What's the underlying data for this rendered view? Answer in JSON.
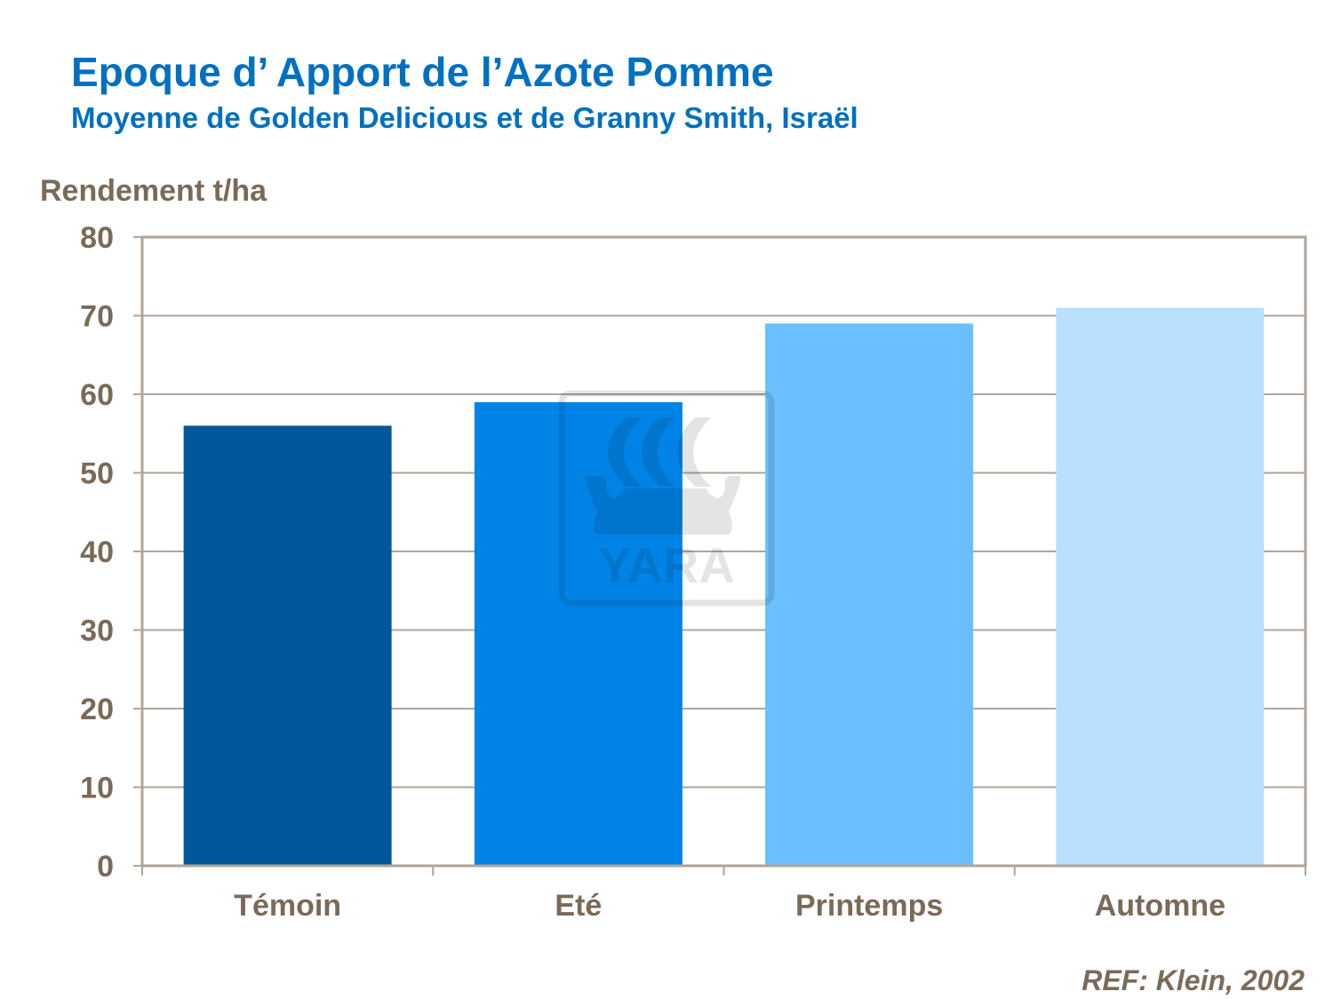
{
  "chart_data": {
    "type": "bar",
    "title": "Epoque d’ Apport de l’Azote Pomme",
    "subtitle": "Moyenne de Golden Delicious et de Granny Smith, Israël",
    "ylabel": "Rendement t/ha",
    "xlabel": "",
    "categories": [
      "Témoin",
      "Eté",
      "Printemps",
      "Automne"
    ],
    "values": [
      56,
      59,
      69,
      71
    ],
    "colors": [
      "#00589A",
      "#0083E6",
      "#6BBFFF",
      "#B9DFFF"
    ],
    "ylim": [
      0,
      80
    ],
    "yticks": [
      0,
      10,
      20,
      30,
      40,
      50,
      60,
      70,
      80
    ],
    "grid": true,
    "legend": "none",
    "annotation": "REF: Klein, 2002",
    "watermark": "YARA"
  }
}
